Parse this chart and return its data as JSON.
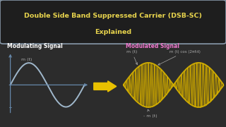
{
  "bg_color": "#2c2c2c",
  "title_box_facecolor": "#1e1e1e",
  "title_box_edgecolor": "#8899aa",
  "title_line1": "Double Side Band Suppressed Carrier (DSB-SC)",
  "title_line2": "Explained",
  "title_color": "#e8d44d",
  "mod_label": "Modulating Signal",
  "mod_label_color": "#ffffff",
  "mod_signal_color": "#a0b8cc",
  "mod_axis_color": "#6688aa",
  "mod_annotation": "m (t)",
  "mod_annot_color": "#aaaaaa",
  "demod_label": "Modulated Signal",
  "demod_label_color": "#ee77cc",
  "dsb_line_color": "#c8a400",
  "dsb_fill_color": "#c8a400",
  "envelope_color": "#d4b000",
  "arrow_color": "#e8c000",
  "annot_mt": "m (t)",
  "annot_formula": "m (t) cos (2πf₀t)",
  "annot_neg_mt": "- m (t)",
  "annot_color": "#aaaaaa"
}
